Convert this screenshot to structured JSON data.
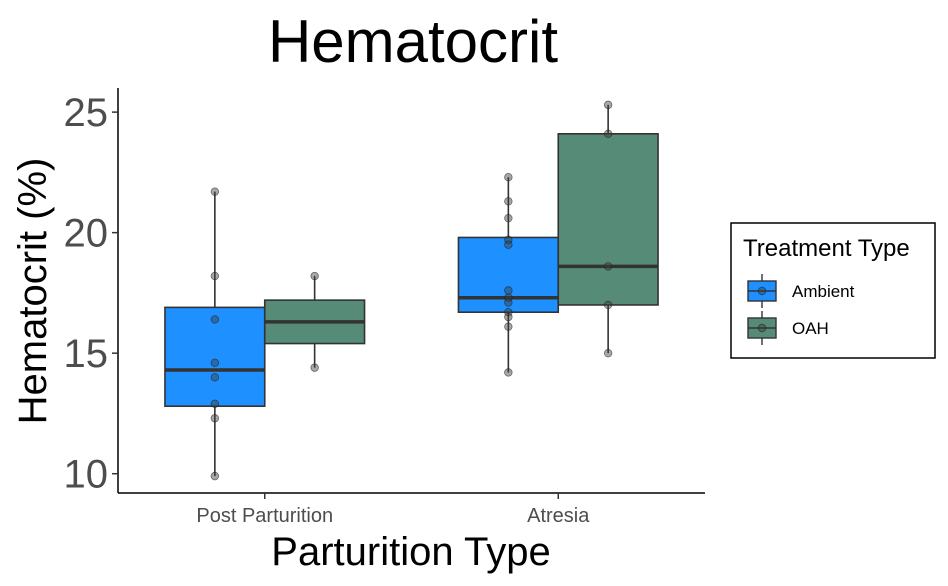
{
  "chart_data": {
    "type": "boxplot",
    "title": "Hematocrit",
    "xlabel": "Parturition Type",
    "ylabel": "Hematocrit (%)",
    "ylim": [
      9.2,
      26.0
    ],
    "yticks": [
      10,
      15,
      20,
      25
    ],
    "grid": false,
    "categories": [
      "Post Parturition",
      "Atresia"
    ],
    "legend": {
      "title": "Treatment Type",
      "position": "right",
      "entries": [
        "Ambient",
        "OAH"
      ]
    },
    "series": [
      {
        "name": "Ambient",
        "color": "#1E90FF",
        "boxes": [
          {
            "category": "Post Parturition",
            "whisker_low": 9.9,
            "q1": 12.8,
            "median": 14.3,
            "q3": 16.9,
            "whisker_high": 21.7,
            "points": [
              21.7,
              18.2,
              16.4,
              14.6,
              14.0,
              12.9,
              12.3,
              9.9
            ]
          },
          {
            "category": "Atresia",
            "whisker_low": 14.2,
            "q1": 16.7,
            "median": 17.3,
            "q3": 19.8,
            "whisker_high": 22.3,
            "points": [
              22.3,
              21.3,
              20.6,
              19.7,
              19.5,
              17.6,
              17.3,
              17.1,
              16.7,
              16.5,
              16.1,
              14.2
            ]
          }
        ]
      },
      {
        "name": "OAH",
        "color": "#568B77",
        "boxes": [
          {
            "category": "Post Parturition",
            "whisker_low": 14.4,
            "q1": 15.4,
            "median": 16.3,
            "q3": 17.2,
            "whisker_high": 18.2,
            "points": [
              18.2,
              14.4
            ]
          },
          {
            "category": "Atresia",
            "whisker_low": 15.0,
            "q1": 17.0,
            "median": 18.6,
            "q3": 24.1,
            "whisker_high": 25.3,
            "points": [
              25.3,
              24.1,
              18.6,
              17.0,
              15.0
            ]
          }
        ]
      }
    ]
  }
}
